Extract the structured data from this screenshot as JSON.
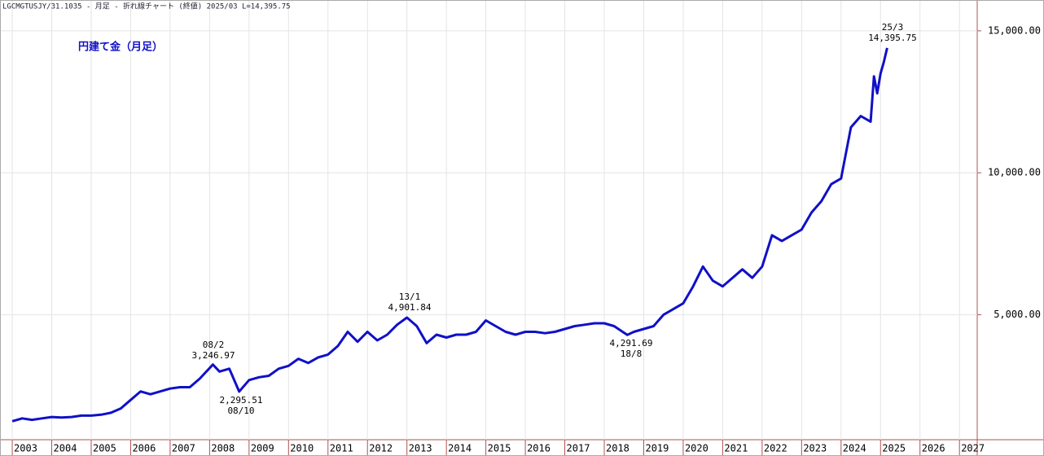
{
  "chart_data": {
    "type": "line",
    "header": "LGCMGTUSJY/31.1035 - 月足 - 折れ線チャート (終値) 2025/03 L=14,395.75",
    "title": "円建て金（月足）",
    "x": [
      2003.0,
      2003.25,
      2003.5,
      2003.75,
      2004.0,
      2004.25,
      2004.5,
      2004.75,
      2005.0,
      2005.25,
      2005.5,
      2005.75,
      2006.0,
      2006.25,
      2006.5,
      2006.75,
      2007.0,
      2007.25,
      2007.5,
      2007.75,
      2008.083,
      2008.25,
      2008.5,
      2008.75,
      2009.0,
      2009.25,
      2009.5,
      2009.75,
      2010.0,
      2010.25,
      2010.5,
      2010.75,
      2011.0,
      2011.25,
      2011.5,
      2011.75,
      2012.0,
      2012.25,
      2012.5,
      2012.75,
      2013.0,
      2013.25,
      2013.5,
      2013.75,
      2014.0,
      2014.25,
      2014.5,
      2014.75,
      2015.0,
      2015.25,
      2015.5,
      2015.75,
      2016.0,
      2016.25,
      2016.5,
      2016.75,
      2017.0,
      2017.25,
      2017.5,
      2017.75,
      2018.0,
      2018.25,
      2018.583,
      2018.75,
      2019.0,
      2019.25,
      2019.5,
      2019.75,
      2020.0,
      2020.25,
      2020.5,
      2020.75,
      2021.0,
      2021.25,
      2021.5,
      2021.75,
      2022.0,
      2022.25,
      2022.5,
      2022.75,
      2023.0,
      2023.25,
      2023.5,
      2023.75,
      2024.0,
      2024.25,
      2024.5,
      2024.75,
      2024.833,
      2024.917,
      2025.0,
      2025.083,
      2025.167
    ],
    "series": [
      {
        "color": "#1010c8",
        "values": [
          1250,
          1350,
          1300,
          1350,
          1400,
          1380,
          1400,
          1450,
          1450,
          1480,
          1550,
          1700,
          2000,
          2300,
          2200,
          2300,
          2400,
          2450,
          2450,
          2750,
          3246.97,
          3000,
          3100,
          2295.51,
          2700,
          2800,
          2850,
          3100,
          3200,
          3450,
          3300,
          3500,
          3600,
          3900,
          4400,
          4050,
          4400,
          4100,
          4300,
          4650,
          4901.84,
          4600,
          4000,
          4300,
          4200,
          4300,
          4300,
          4400,
          4800,
          4600,
          4400,
          4300,
          4400,
          4400,
          4350,
          4400,
          4500,
          4600,
          4650,
          4700,
          4700,
          4600,
          4291.69,
          4400,
          4500,
          4600,
          5000,
          5200,
          5400,
          6000,
          6700,
          6200,
          6000,
          6300,
          6600,
          6300,
          6700,
          7800,
          7600,
          7800,
          8000,
          8600,
          9000,
          9600,
          9800,
          11600,
          12000,
          11800,
          13400,
          12800,
          13500,
          13900,
          14395.75
        ]
      }
    ],
    "xlim": [
      2002.71,
      2027.45
    ],
    "xticks": [
      2003,
      2004,
      2005,
      2006,
      2007,
      2008,
      2009,
      2010,
      2011,
      2012,
      2013,
      2014,
      2015,
      2016,
      2017,
      2018,
      2019,
      2020,
      2021,
      2022,
      2023,
      2024,
      2025,
      2026,
      2027
    ],
    "ylim": [
      600,
      16057
    ],
    "yticks": [
      {
        "value": 5000,
        "label": "5,000.00"
      },
      {
        "value": 10000,
        "label": "10,000.00"
      },
      {
        "value": 15000,
        "label": "15,000.00"
      }
    ],
    "grid": true,
    "annotations": [
      [
        "08/2",
        "3,246.97"
      ],
      [
        "2,295.51",
        "08/10"
      ],
      [
        "13/1",
        "4,901.84"
      ],
      [
        "4,291.69",
        "18/8"
      ],
      [
        "25/3",
        "14,395.75"
      ]
    ]
  }
}
